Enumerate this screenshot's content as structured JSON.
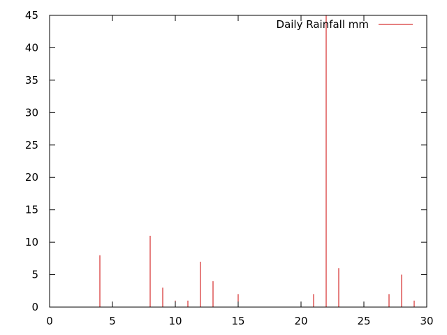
{
  "chart_data": {
    "type": "bar",
    "title": "",
    "xlabel": "",
    "ylabel": "",
    "xlim": [
      0,
      30
    ],
    "ylim": [
      0,
      45
    ],
    "x_ticks": [
      0,
      5,
      10,
      15,
      20,
      25,
      30
    ],
    "y_ticks": [
      0,
      5,
      10,
      15,
      20,
      25,
      30,
      35,
      40,
      45
    ],
    "grid": false,
    "legend_position": "top-right",
    "series": [
      {
        "name": "Daily Rainfall mm",
        "color": "#cc0000",
        "style": "impulses",
        "x": [
          4,
          8,
          9,
          10,
          11,
          12,
          13,
          15,
          21,
          22,
          23,
          27,
          28,
          29
        ],
        "values": [
          8,
          11,
          3,
          1,
          1,
          7,
          4,
          2,
          2,
          45,
          6,
          2,
          5,
          1
        ]
      }
    ]
  }
}
